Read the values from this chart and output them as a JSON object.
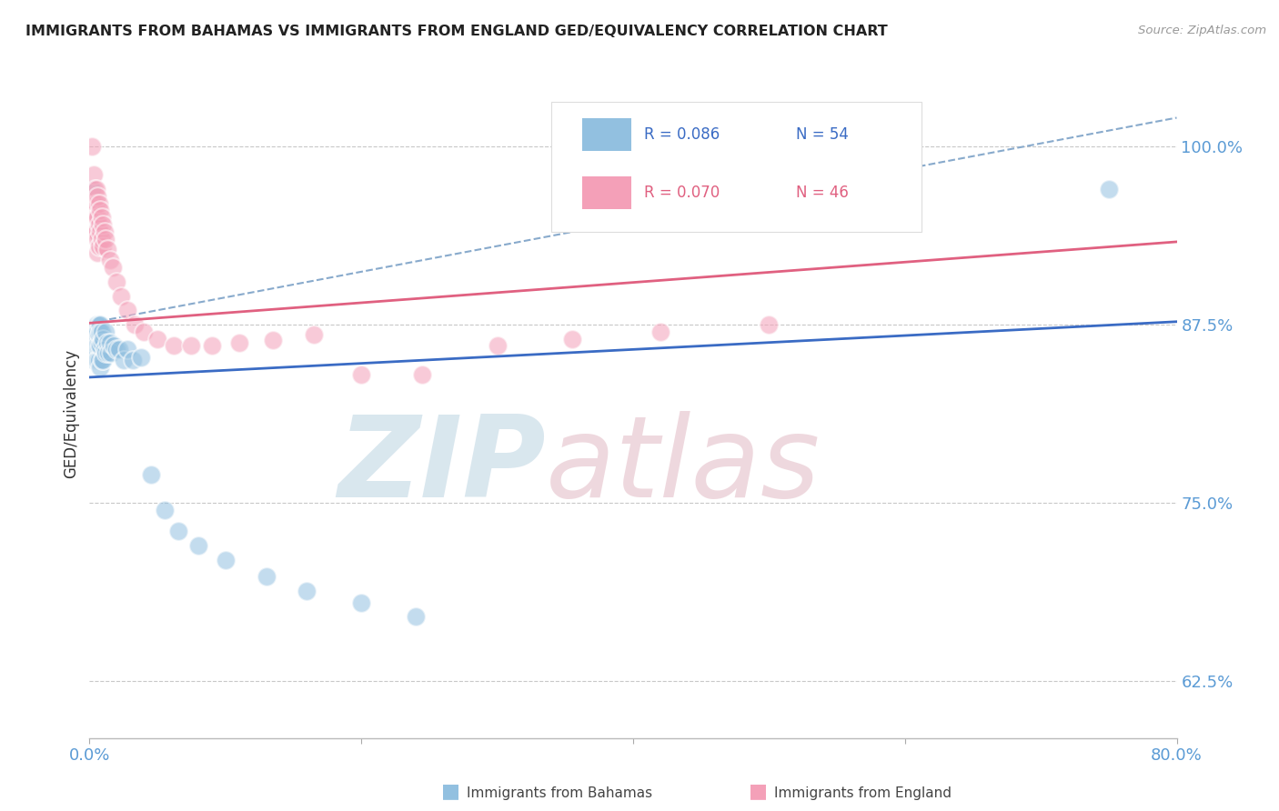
{
  "title": "IMMIGRANTS FROM BAHAMAS VS IMMIGRANTS FROM ENGLAND GED/EQUIVALENCY CORRELATION CHART",
  "source": "Source: ZipAtlas.com",
  "ylabel": "GED/Equivalency",
  "yticks": [
    0.625,
    0.75,
    0.875,
    1.0
  ],
  "ytick_labels": [
    "62.5%",
    "75.0%",
    "87.5%",
    "100.0%"
  ],
  "xmin": 0.0,
  "xmax": 0.8,
  "ymin": 0.585,
  "ymax": 1.04,
  "legend_r1": "R = 0.086",
  "legend_n1": "N = 54",
  "legend_r2": "R = 0.070",
  "legend_n2": "N = 46",
  "color_blue": "#92C0E0",
  "color_pink": "#F4A0B8",
  "color_trendline_blue": "#3A6BC4",
  "color_trendline_pink": "#E06080",
  "color_trendline_gray": "#88AACC",
  "color_axis_text": "#5B9BD5",
  "color_title": "#222222",
  "blue_trend_x0": 0.0,
  "blue_trend_y0": 0.838,
  "blue_trend_x1": 0.8,
  "blue_trend_y1": 0.877,
  "pink_trend_x0": 0.0,
  "pink_trend_y0": 0.876,
  "pink_trend_x1": 0.8,
  "pink_trend_y1": 0.933,
  "gray_trend_x0": 0.0,
  "gray_trend_y0": 0.876,
  "gray_trend_x1": 0.8,
  "gray_trend_y1": 1.02,
  "bahamas_x": [
    0.002,
    0.003,
    0.003,
    0.003,
    0.004,
    0.004,
    0.004,
    0.005,
    0.005,
    0.005,
    0.005,
    0.005,
    0.005,
    0.006,
    0.006,
    0.006,
    0.006,
    0.007,
    0.007,
    0.007,
    0.007,
    0.008,
    0.008,
    0.008,
    0.008,
    0.009,
    0.009,
    0.009,
    0.01,
    0.01,
    0.011,
    0.012,
    0.012,
    0.013,
    0.014,
    0.015,
    0.016,
    0.018,
    0.02,
    0.022,
    0.025,
    0.028,
    0.032,
    0.038,
    0.045,
    0.055,
    0.065,
    0.08,
    0.1,
    0.13,
    0.16,
    0.2,
    0.24,
    0.75
  ],
  "bahamas_y": [
    0.97,
    0.87,
    0.86,
    0.85,
    0.87,
    0.86,
    0.85,
    0.875,
    0.87,
    0.865,
    0.86,
    0.855,
    0.85,
    0.875,
    0.87,
    0.86,
    0.85,
    0.875,
    0.868,
    0.86,
    0.85,
    0.875,
    0.87,
    0.86,
    0.845,
    0.87,
    0.862,
    0.85,
    0.865,
    0.85,
    0.858,
    0.87,
    0.855,
    0.862,
    0.855,
    0.862,
    0.855,
    0.86,
    0.858,
    0.858,
    0.85,
    0.858,
    0.85,
    0.852,
    0.77,
    0.745,
    0.73,
    0.72,
    0.71,
    0.698,
    0.688,
    0.68,
    0.67,
    0.97
  ],
  "england_x": [
    0.002,
    0.003,
    0.003,
    0.004,
    0.004,
    0.004,
    0.005,
    0.005,
    0.005,
    0.005,
    0.006,
    0.006,
    0.006,
    0.006,
    0.007,
    0.007,
    0.007,
    0.008,
    0.008,
    0.009,
    0.009,
    0.01,
    0.01,
    0.011,
    0.012,
    0.013,
    0.015,
    0.017,
    0.02,
    0.023,
    0.028,
    0.033,
    0.04,
    0.05,
    0.062,
    0.075,
    0.09,
    0.11,
    0.135,
    0.165,
    0.2,
    0.245,
    0.3,
    0.355,
    0.42,
    0.5
  ],
  "england_y": [
    1.0,
    0.98,
    0.96,
    0.97,
    0.95,
    0.94,
    0.97,
    0.96,
    0.95,
    0.94,
    0.965,
    0.95,
    0.935,
    0.925,
    0.96,
    0.945,
    0.93,
    0.955,
    0.94,
    0.95,
    0.935,
    0.945,
    0.93,
    0.94,
    0.935,
    0.928,
    0.92,
    0.915,
    0.905,
    0.895,
    0.885,
    0.875,
    0.87,
    0.865,
    0.86,
    0.86,
    0.86,
    0.862,
    0.864,
    0.868,
    0.84,
    0.84,
    0.86,
    0.865,
    0.87,
    0.875
  ]
}
